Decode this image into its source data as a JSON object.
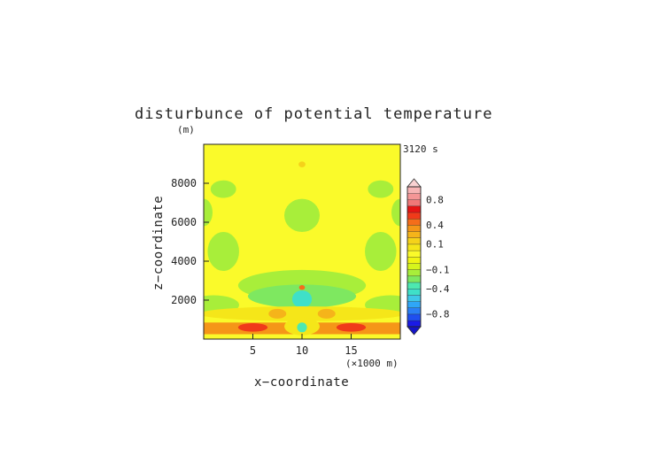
{
  "chart_data": {
    "type": "heatmap",
    "title": "disturbunce of potential temperature",
    "y_unit_label": "(m)",
    "time_label": "3120 s",
    "xlabel": "x−coordinate",
    "ylabel": "z−coordinate",
    "x_unit_label": "(×1000 m)",
    "x_range": [
      0,
      20000
    ],
    "y_range": [
      0,
      10000
    ],
    "x_ticks": [
      {
        "value": 5000,
        "label": "5"
      },
      {
        "value": 10000,
        "label": "10"
      },
      {
        "value": 15000,
        "label": "15"
      }
    ],
    "y_ticks": [
      {
        "value": 2000,
        "label": "2000"
      },
      {
        "value": 4000,
        "label": "4000"
      },
      {
        "value": 6000,
        "label": "6000"
      },
      {
        "value": 8000,
        "label": "8000"
      }
    ],
    "colorbar": {
      "levels": [
        -1.0,
        -0.9,
        -0.8,
        -0.7,
        -0.6,
        -0.5,
        -0.4,
        -0.3,
        -0.2,
        -0.1,
        -0.05,
        0.0,
        0.05,
        0.1,
        0.2,
        0.3,
        0.4,
        0.5,
        0.6,
        0.7,
        0.8,
        0.9,
        1.0
      ],
      "colors": [
        "#1a1ae6",
        "#1f4ff0",
        "#2a7ff5",
        "#2fa6f7",
        "#3fc8e8",
        "#3fe0c8",
        "#4de8b0",
        "#7ee860",
        "#a8ee3a",
        "#d6f51c",
        "#f0f514",
        "#fafa2a",
        "#f5e619",
        "#f5d21a",
        "#f5b41a",
        "#f59618",
        "#f56d1a",
        "#f03a1a",
        "#e61414",
        "#f07878",
        "#f59696",
        "#f7b4b4"
      ],
      "labels": [
        {
          "value": 0.8,
          "label": "0.8"
        },
        {
          "value": 0.4,
          "label": "0.4"
        },
        {
          "value": 0.1,
          "label": "0.1"
        },
        {
          "value": -0.1,
          "label": "−0.1"
        },
        {
          "value": -0.4,
          "label": "−0.4"
        },
        {
          "value": -0.8,
          "label": "−0.8"
        }
      ],
      "extend": "both"
    },
    "features": [
      {
        "kind": "base",
        "value": 0.0
      },
      {
        "kind": "ellipse",
        "cx": 10000,
        "cy": 8970,
        "rx": 350,
        "ry": 150,
        "value": 0.18
      },
      {
        "kind": "ellipse",
        "cx": 2000,
        "cy": 7700,
        "rx": 1300,
        "ry": 450,
        "value": -0.12
      },
      {
        "kind": "ellipse",
        "cx": 18000,
        "cy": 7700,
        "rx": 1300,
        "ry": 450,
        "value": -0.12
      },
      {
        "kind": "ellipse",
        "cx": 10000,
        "cy": 6350,
        "rx": 1800,
        "ry": 850,
        "value": -0.12
      },
      {
        "kind": "ellipse",
        "cx": 0,
        "cy": 6500,
        "rx": 900,
        "ry": 700,
        "value": -0.12
      },
      {
        "kind": "ellipse",
        "cx": 20000,
        "cy": 6500,
        "rx": 900,
        "ry": 700,
        "value": -0.12
      },
      {
        "kind": "ellipse",
        "cx": 2000,
        "cy": 4500,
        "rx": 1600,
        "ry": 1000,
        "value": -0.12
      },
      {
        "kind": "ellipse",
        "cx": 18000,
        "cy": 4500,
        "rx": 1600,
        "ry": 1000,
        "value": -0.12
      },
      {
        "kind": "ellipse",
        "cx": 10000,
        "cy": 2750,
        "rx": 6500,
        "ry": 800,
        "value": -0.12
      },
      {
        "kind": "ellipse",
        "cx": 10000,
        "cy": 2200,
        "rx": 5500,
        "ry": 600,
        "value": -0.28
      },
      {
        "kind": "ellipse",
        "cx": 10000,
        "cy": 2050,
        "rx": 1000,
        "ry": 450,
        "value": -0.5
      },
      {
        "kind": "ellipse",
        "cx": 10000,
        "cy": 2650,
        "rx": 300,
        "ry": 120,
        "value": 0.45
      },
      {
        "kind": "ellipse",
        "cx": 1000,
        "cy": 1750,
        "rx": 2600,
        "ry": 500,
        "value": -0.15
      },
      {
        "kind": "ellipse",
        "cx": 19000,
        "cy": 1750,
        "rx": 2600,
        "ry": 500,
        "value": -0.15
      },
      {
        "kind": "ellipse",
        "cx": 10000,
        "cy": 1300,
        "rx": 10500,
        "ry": 380,
        "value": 0.07
      },
      {
        "kind": "ellipse",
        "cx": 7500,
        "cy": 1300,
        "rx": 900,
        "ry": 250,
        "value": 0.28
      },
      {
        "kind": "ellipse",
        "cx": 12500,
        "cy": 1300,
        "rx": 900,
        "ry": 250,
        "value": 0.28
      },
      {
        "kind": "rect",
        "x0": 0,
        "x1": 20000,
        "y0": 250,
        "y1": 850,
        "value": 0.32
      },
      {
        "kind": "ellipse",
        "cx": 5000,
        "cy": 600,
        "rx": 1500,
        "ry": 220,
        "value": 0.55
      },
      {
        "kind": "ellipse",
        "cx": 15000,
        "cy": 600,
        "rx": 1500,
        "ry": 220,
        "value": 0.55
      },
      {
        "kind": "ellipse",
        "cx": 10000,
        "cy": 650,
        "rx": 1800,
        "ry": 450,
        "value": 0.05
      },
      {
        "kind": "ellipse",
        "cx": 10000,
        "cy": 600,
        "rx": 500,
        "ry": 250,
        "value": -0.35
      }
    ]
  }
}
